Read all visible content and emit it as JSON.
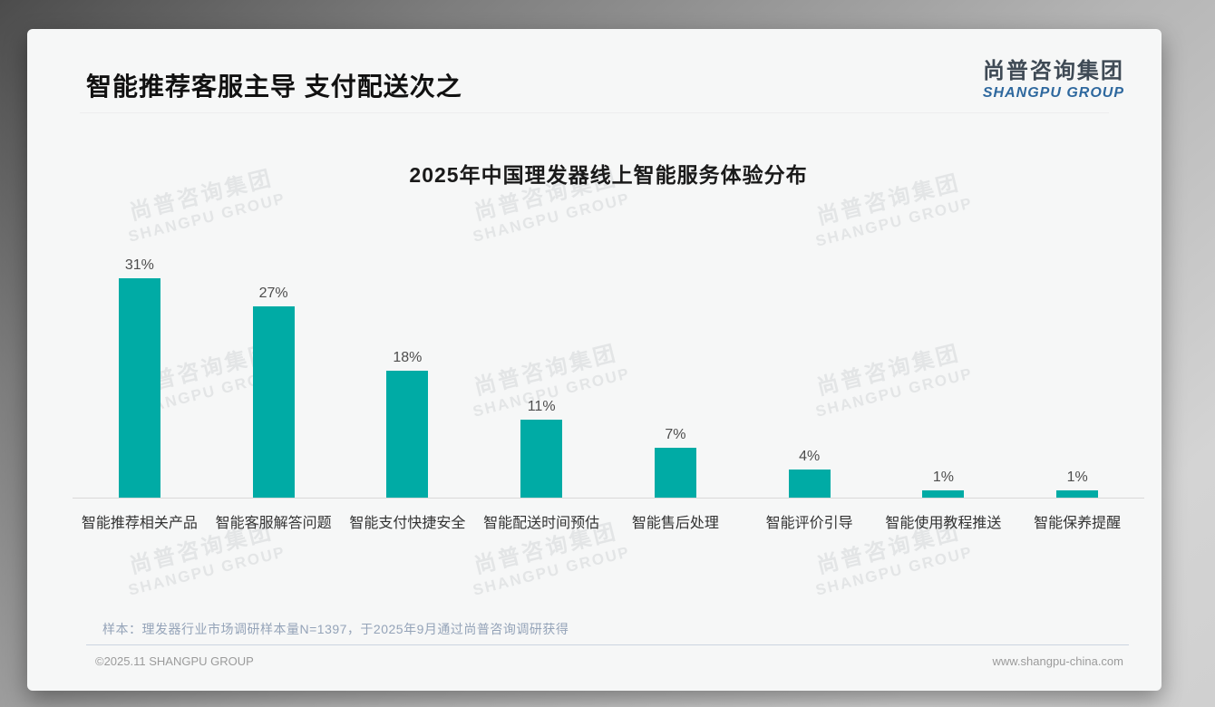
{
  "page": {
    "title": "智能推荐客服主导 支付配送次之"
  },
  "logo": {
    "cn": "尚普咨询集团",
    "en": "SHANGPU GROUP"
  },
  "watermark": {
    "cn": "尚普咨询集团",
    "en": "SHANGPU GROUP"
  },
  "chart_data": {
    "type": "bar",
    "title": "2025年中国理发器线上智能服务体验分布",
    "categories": [
      "智能推荐相关产品",
      "智能客服解答问题",
      "智能支付快捷安全",
      "智能配送时间预估",
      "智能售后处理",
      "智能评价引导",
      "智能使用教程推送",
      "智能保养提醒"
    ],
    "values": [
      31,
      27,
      18,
      11,
      7,
      4,
      1,
      1
    ],
    "value_labels": [
      "31%",
      "27%",
      "18%",
      "11%",
      "7%",
      "4%",
      "1%",
      "1%"
    ],
    "bar_color": "#00ABA5",
    "ylim": [
      0,
      35
    ],
    "grid": false,
    "legend_position": "none",
    "xlabel": "",
    "ylabel": ""
  },
  "footnote": "样本：理发器行业市场调研样本量N=1397，于2025年9月通过尚普咨询调研获得",
  "footer": {
    "left": "©2025.11 SHANGPU GROUP",
    "right": "www.shangpu-china.com"
  }
}
